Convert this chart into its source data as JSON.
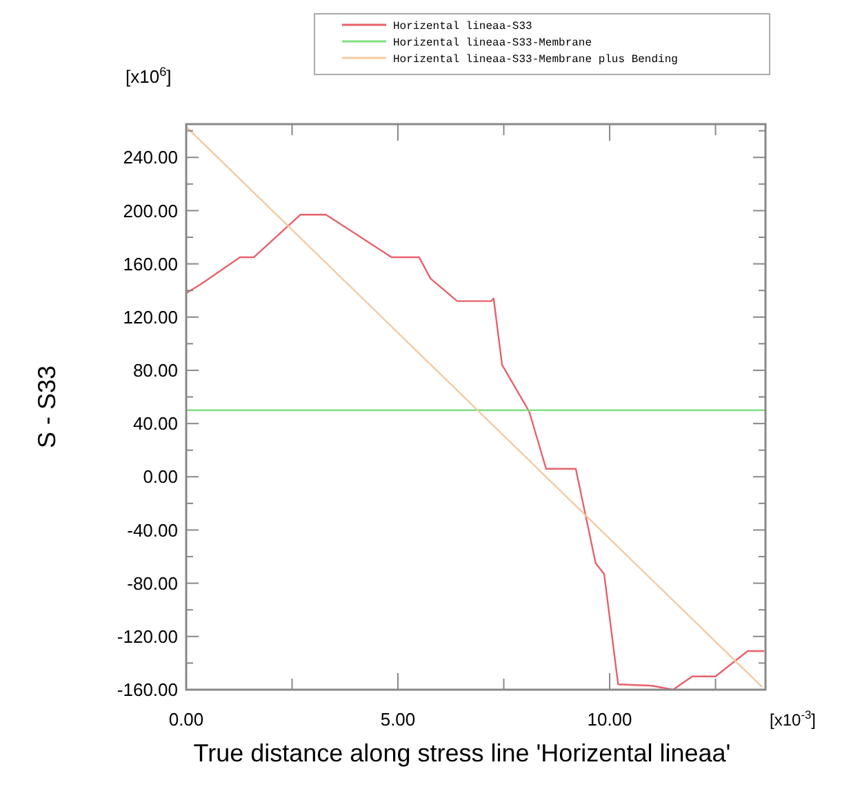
{
  "chart_data": {
    "type": "line",
    "xlabel": "True distance along stress line 'Horizental lineaa'",
    "ylabel": "S - S33",
    "annotations": [
      "[x10$^{6}$]",
      "[x10$^{-3}$]"
    ],
    "xlim": [
      0,
      13.68
    ],
    "ylim": [
      -160,
      265
    ],
    "xticks": [
      {
        "value": 0,
        "label": "0.00"
      },
      {
        "value": 2.5,
        "label": null
      },
      {
        "value": 5,
        "label": "5.00"
      },
      {
        "value": 7.5,
        "label": null
      },
      {
        "value": 10,
        "label": "10.00"
      },
      {
        "value": 12.5,
        "label": null
      }
    ],
    "yticks": [
      {
        "value": -160,
        "label": "-160.00"
      },
      {
        "value": -140,
        "label": null
      },
      {
        "value": -120,
        "label": "-120.00"
      },
      {
        "value": -100,
        "label": null
      },
      {
        "value": -80,
        "label": "-80.00"
      },
      {
        "value": -60,
        "label": null
      },
      {
        "value": -40,
        "label": "-40.00"
      },
      {
        "value": -20,
        "label": null
      },
      {
        "value": 0,
        "label": "0.00"
      },
      {
        "value": 20,
        "label": null
      },
      {
        "value": 40,
        "label": "40.00"
      },
      {
        "value": 60,
        "label": null
      },
      {
        "value": 80,
        "label": "80.00"
      },
      {
        "value": 100,
        "label": null
      },
      {
        "value": 120,
        "label": "120.00"
      },
      {
        "value": 140,
        "label": null
      },
      {
        "value": 160,
        "label": "160.00"
      },
      {
        "value": 180,
        "label": null
      },
      {
        "value": 200,
        "label": "200.00"
      },
      {
        "value": 220,
        "label": null
      },
      {
        "value": 240,
        "label": "240.00"
      },
      {
        "value": 260,
        "label": null
      }
    ],
    "grid": false,
    "legend": "top",
    "marker": "none",
    "line_style": "solid",
    "series": [
      {
        "name": "Horizental lineaa-S33",
        "color": "#e8606a",
        "x": [
          0,
          0.36,
          1.27,
          1.6,
          2.7,
          3.3,
          4.85,
          5.5,
          5.77,
          6.4,
          7.2,
          7.26,
          7.46,
          8.1,
          8.5,
          9.2,
          9.67,
          9.87,
          10.2,
          11.0,
          11.5,
          11.95,
          12.5,
          13.26,
          13.65
        ],
        "values": [
          138,
          145,
          165,
          165,
          197,
          197,
          165,
          165,
          149,
          132,
          132,
          134,
          84,
          49,
          6,
          6,
          -65,
          -73,
          -156,
          -157,
          -160,
          -150,
          -150,
          -131,
          -131
        ]
      },
      {
        "name": "Horizental lineaa-S33-Membrane",
        "color": "#80e080",
        "x": [
          0,
          13.68
        ],
        "values": [
          50,
          50
        ]
      },
      {
        "name": "Horizental lineaa-S33-Membrane plus Bending",
        "color": "#f5c9a0",
        "x": [
          0,
          13.6
        ],
        "values": [
          263,
          -158
        ]
      }
    ]
  }
}
